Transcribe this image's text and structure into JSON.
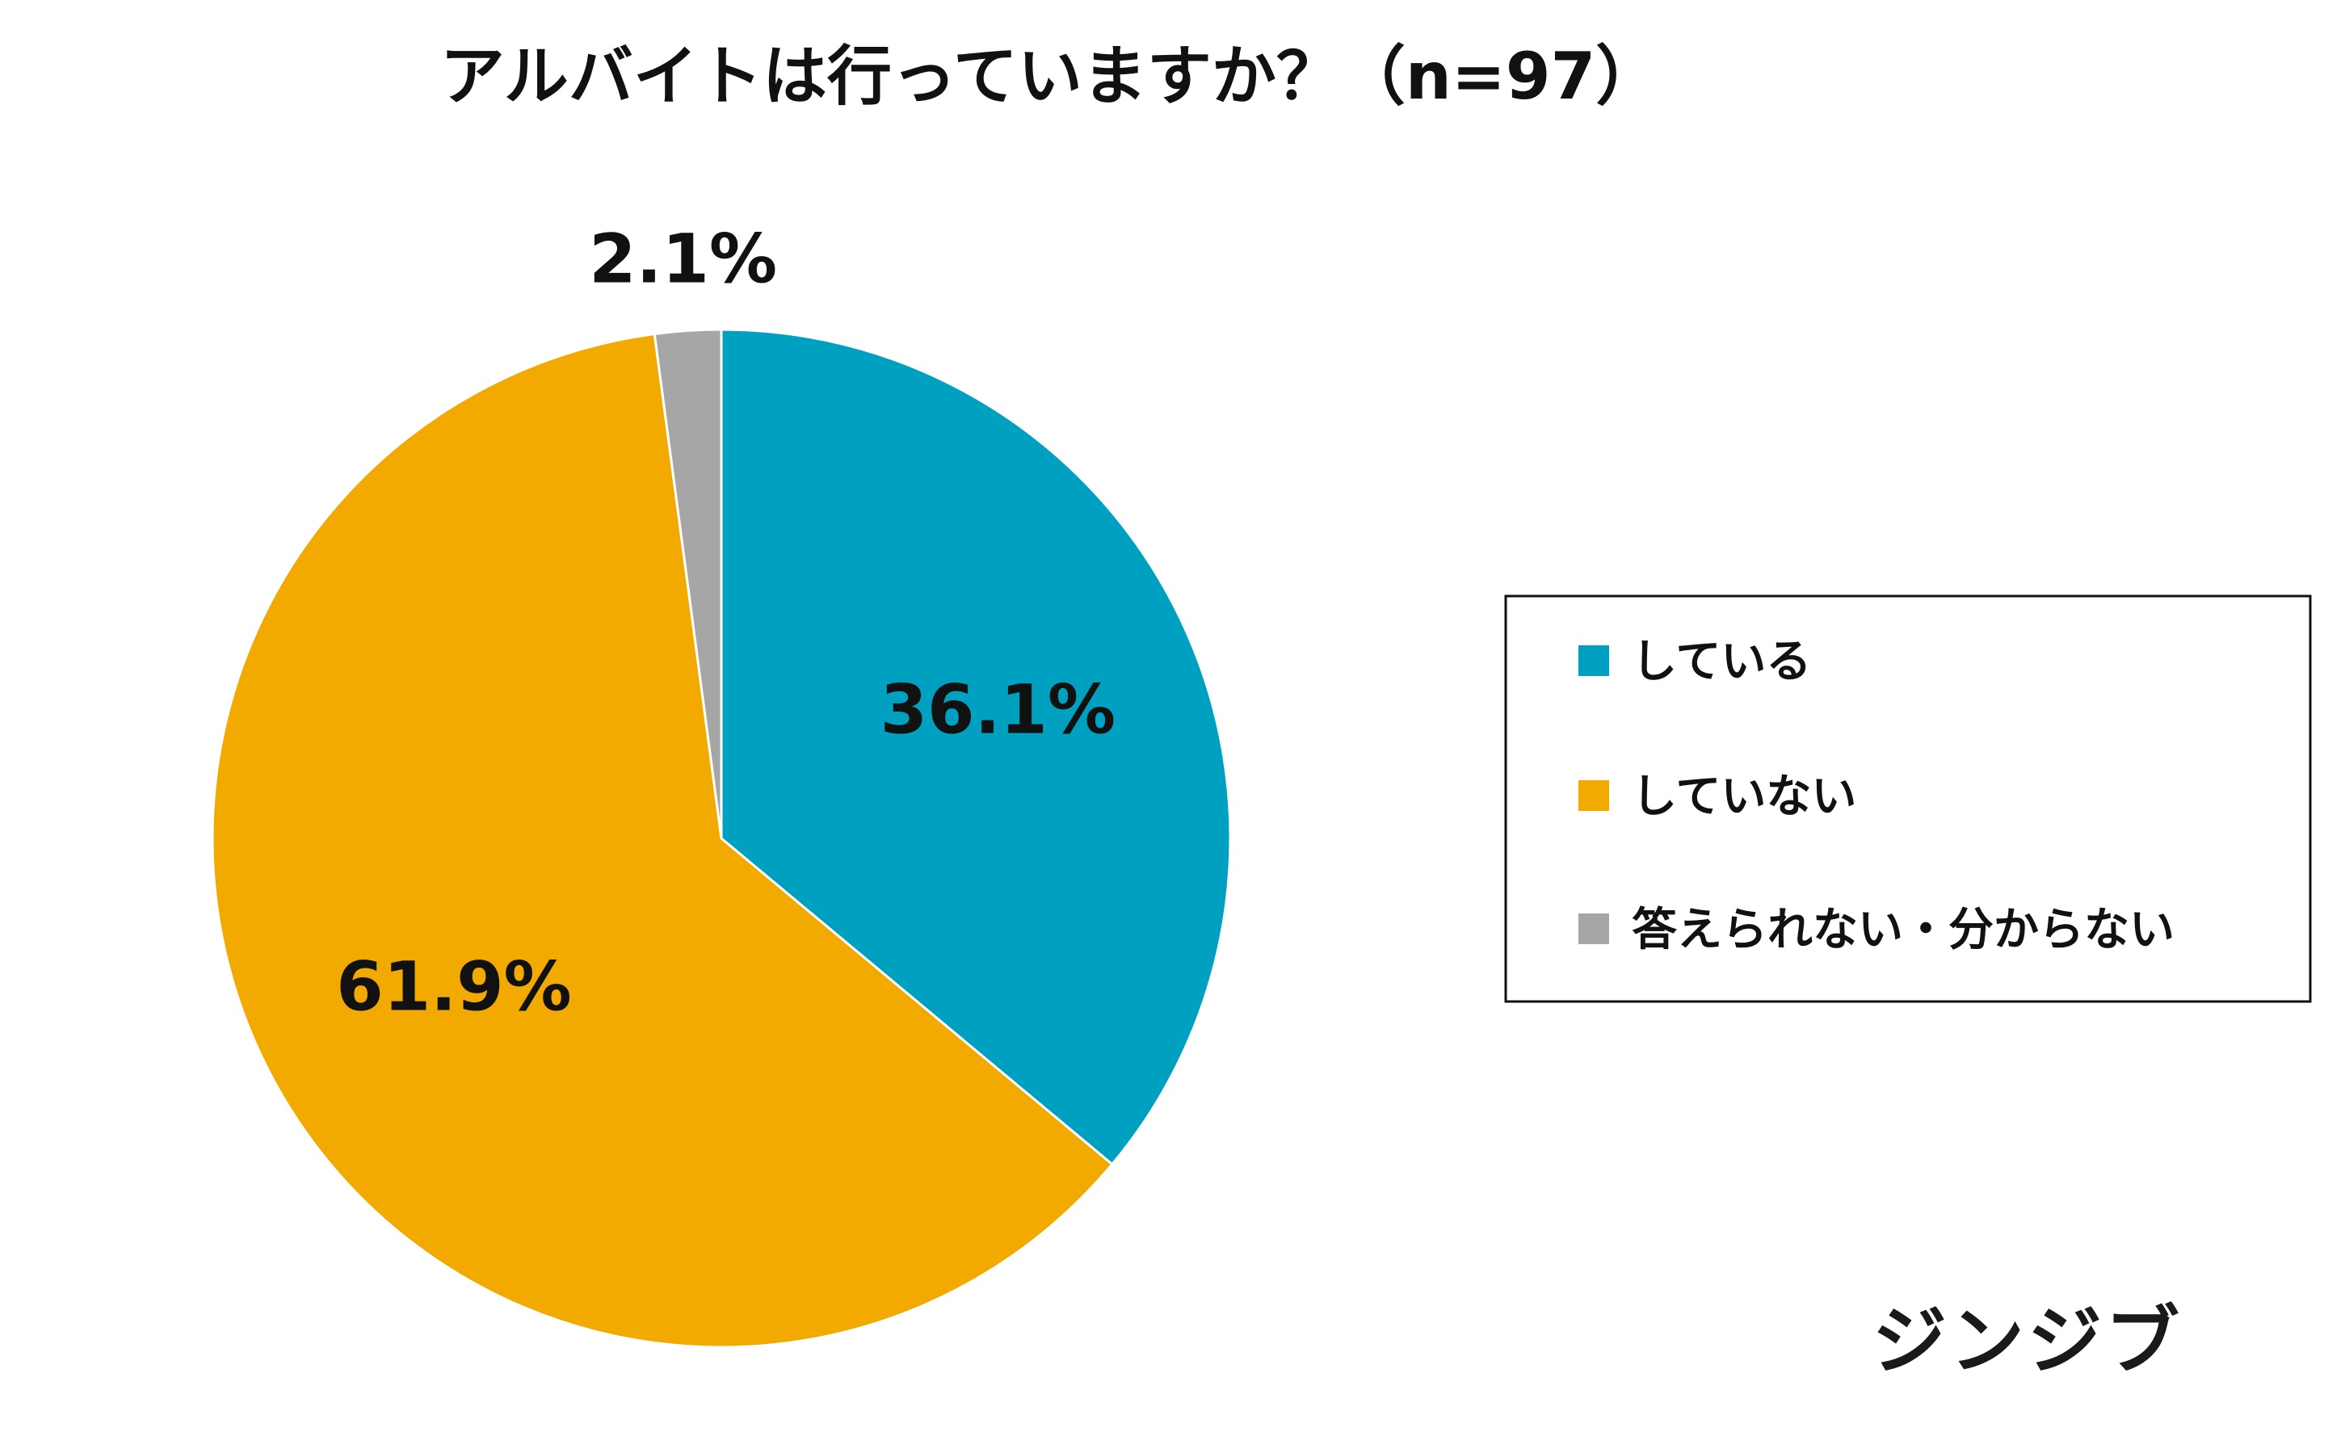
{
  "chart_data": {
    "type": "pie",
    "title": "アルバイトは行っていますか？（n=97）",
    "categories": [
      "している",
      "していない",
      "答えられない・分からない"
    ],
    "values": [
      36.1,
      61.9,
      2.1
    ],
    "data_labels": [
      "36.1%",
      "61.9%",
      "2.1%"
    ],
    "colors": [
      "#00A0C0",
      "#F2A900",
      "#A6A6A6"
    ],
    "start_angle_deg": 0,
    "direction": "clockwise",
    "legend_position": "right"
  },
  "brand": {
    "logo_text": "ジンジブ"
  }
}
